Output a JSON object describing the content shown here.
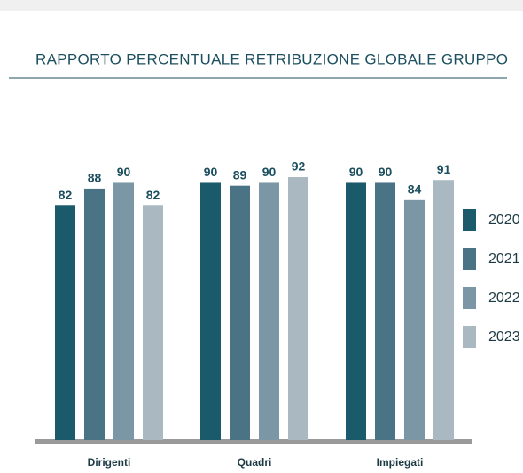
{
  "chart_data": {
    "type": "bar",
    "title": "RAPPORTO PERCENTUALE RETRIBUZIONE GLOBALE GRUPPO",
    "categories": [
      "Dirigenti",
      "Quadri",
      "Impiegati"
    ],
    "series": [
      {
        "name": "2020",
        "color": "#1b5a6b",
        "values": [
          82,
          90,
          90
        ]
      },
      {
        "name": "2021",
        "color": "#4a7386",
        "values": [
          88,
          89,
          90
        ]
      },
      {
        "name": "2022",
        "color": "#7b96a5",
        "values": [
          90,
          90,
          84
        ]
      },
      {
        "name": "2023",
        "color": "#a9b8c1",
        "values": [
          82,
          92,
          91
        ]
      }
    ],
    "legend": "right"
  }
}
